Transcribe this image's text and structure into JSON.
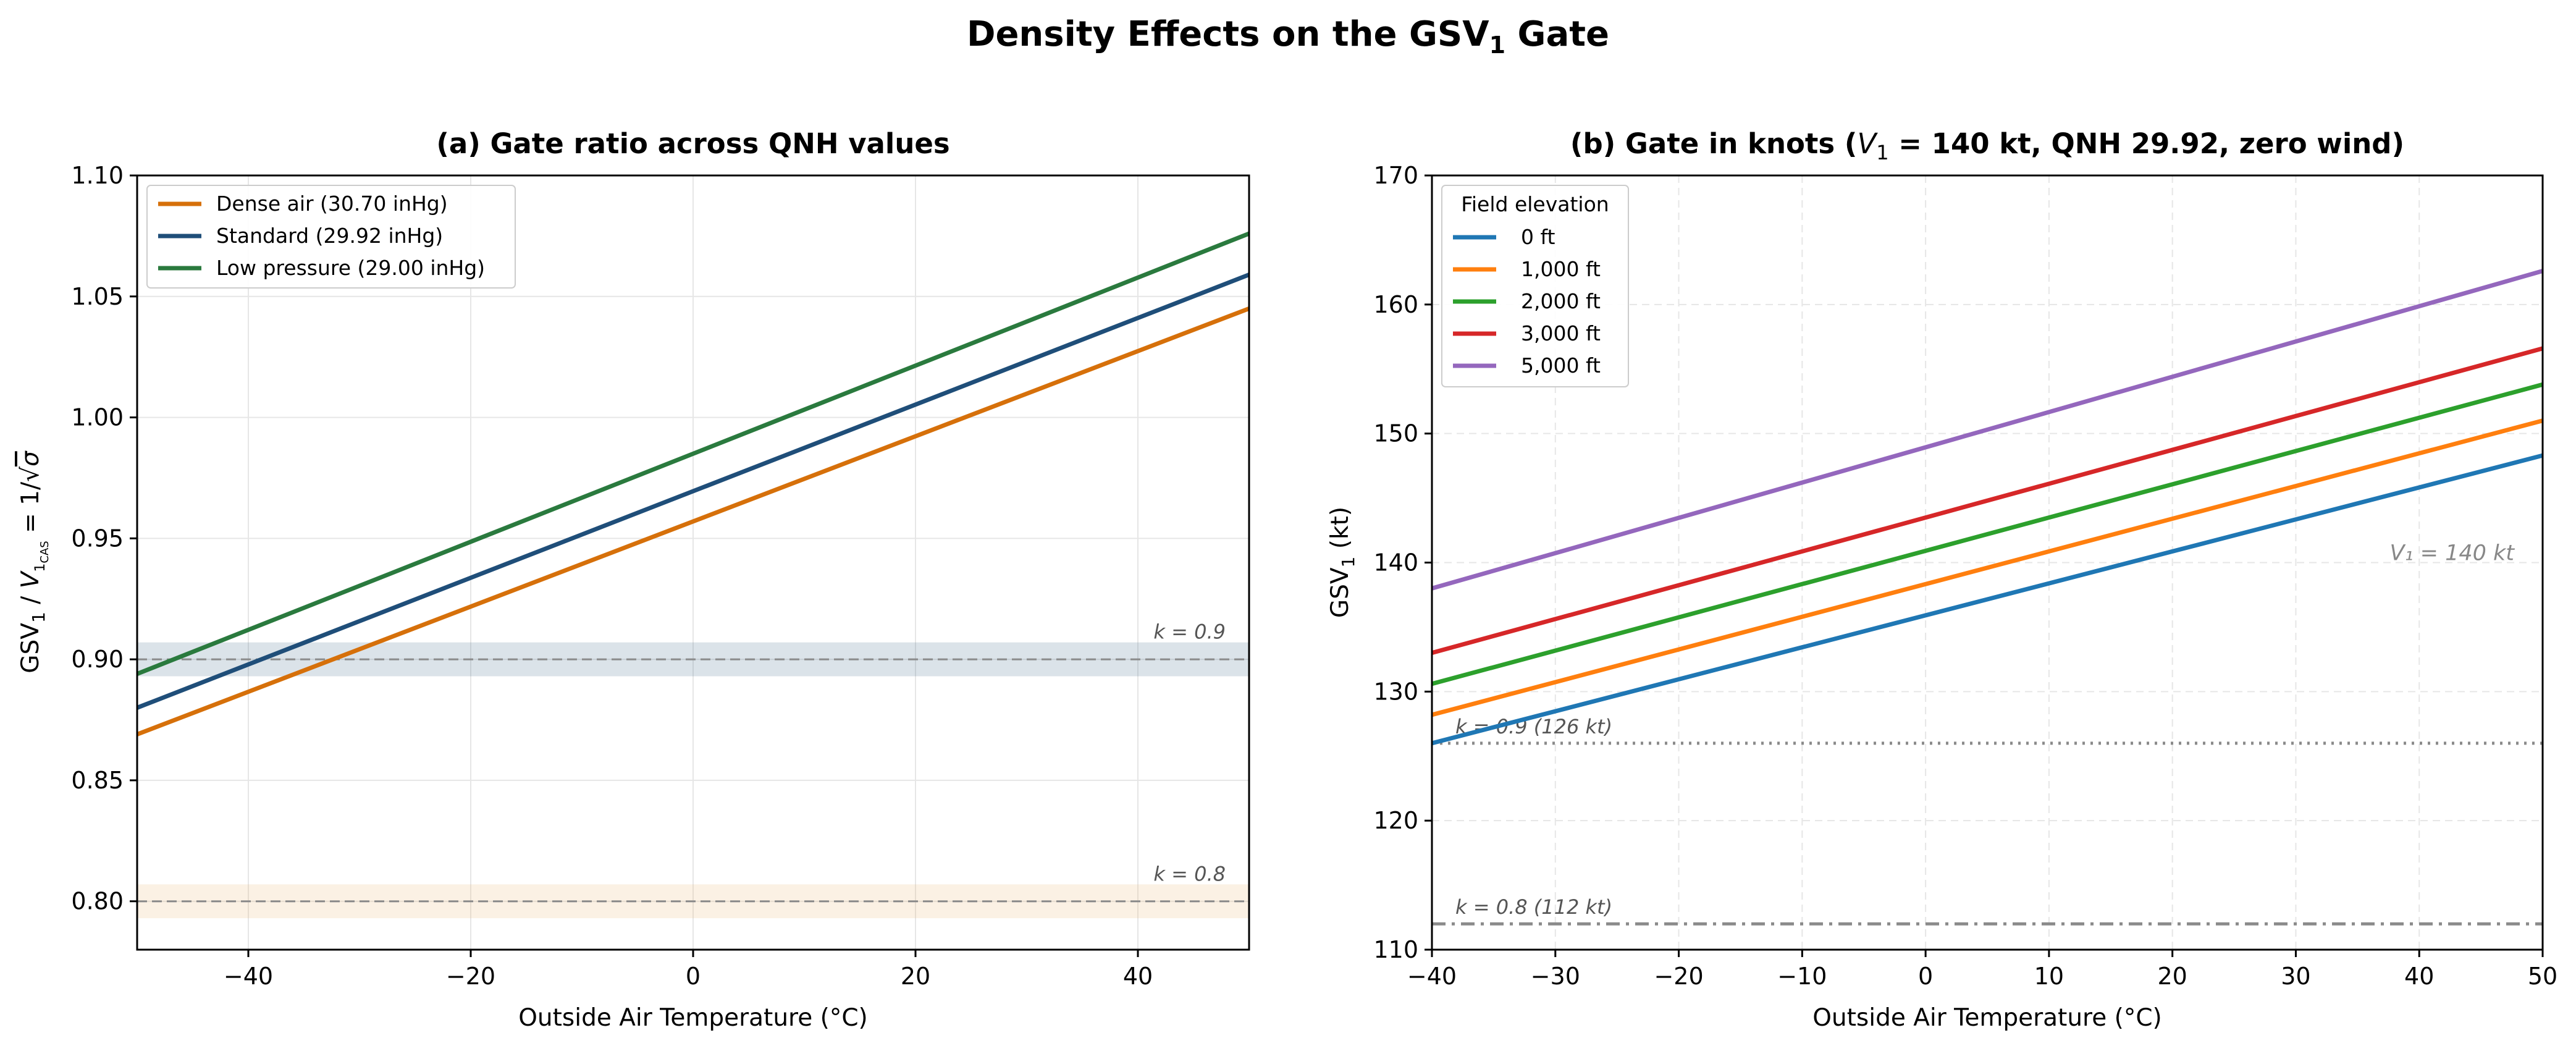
{
  "figure": {
    "title_main": "Density Effects on the GSV",
    "title_sub": "1",
    "title_end": " Gate"
  },
  "chart_data": [
    {
      "type": "line",
      "title": "(a)  Gate ratio across QNH values",
      "xlabel": "Outside Air Temperature (°C)",
      "ylabel": "GSV₁ / V₁CAS = 1/√σ",
      "xlim": [
        -50,
        50
      ],
      "ylim": [
        0.78,
        1.1
      ],
      "xticks": [
        -40,
        -20,
        0,
        20,
        40
      ],
      "xtick_labels": [
        "−40",
        "−20",
        "0",
        "20",
        "40"
      ],
      "yticks": [
        0.8,
        0.85,
        0.9,
        0.95,
        1.0,
        1.05,
        1.1
      ],
      "ytick_labels": [
        "0.80",
        "0.85",
        "0.90",
        "0.95",
        "1.00",
        "1.05",
        "1.10"
      ],
      "grid": true,
      "legend_position": "top-left",
      "series": [
        {
          "name": "Dense air (30.70 inHg)",
          "color": "#D6700A",
          "x": [
            -50,
            50
          ],
          "values": [
            0.869,
            1.045
          ]
        },
        {
          "name": "Standard (29.92 inHg)",
          "color": "#1F4E79",
          "x": [
            -50,
            50
          ],
          "values": [
            0.88,
            1.059
          ]
        },
        {
          "name": "Low pressure (29.00 inHg)",
          "color": "#2A7A3E",
          "x": [
            -50,
            50
          ],
          "values": [
            0.894,
            1.076
          ]
        }
      ],
      "reference_lines": [
        {
          "label": "k = 0.9",
          "y": 0.9,
          "band": [
            0.893,
            0.907
          ],
          "band_color": "#1F4E79"
        },
        {
          "label": "k = 0.8",
          "y": 0.8,
          "band": [
            0.793,
            0.807
          ],
          "band_color": "#E8A65A"
        }
      ]
    },
    {
      "type": "line",
      "title_prefix": "(b)  Gate in knots (",
      "title_v": "V",
      "title_sub": "1",
      "title_suffix": " = 140 kt, QNH 29.92, zero wind)",
      "xlabel": "Outside Air Temperature (°C)",
      "ylabel": "GSV₁ (kt)",
      "xlim": [
        -40,
        50
      ],
      "ylim": [
        110,
        170
      ],
      "xticks": [
        -40,
        -30,
        -20,
        -10,
        0,
        10,
        20,
        30,
        40,
        50
      ],
      "xtick_labels": [
        "−40",
        "−30",
        "−20",
        "−10",
        "0",
        "10",
        "20",
        "30",
        "40",
        "50"
      ],
      "yticks": [
        110,
        120,
        130,
        140,
        150,
        160,
        170
      ],
      "ytick_labels": [
        "110",
        "120",
        "130",
        "140",
        "150",
        "160",
        "170"
      ],
      "grid": true,
      "legend_title": "Field elevation",
      "legend_position": "top-left",
      "series": [
        {
          "name": "0 ft",
          "color": "#1F77B4",
          "x": [
            -40,
            50
          ],
          "values": [
            126.0,
            148.3
          ]
        },
        {
          "name": "1,000 ft",
          "color": "#FF7F0E",
          "x": [
            -40,
            50
          ],
          "values": [
            128.2,
            151.0
          ]
        },
        {
          "name": "2,000 ft",
          "color": "#2CA02C",
          "x": [
            -40,
            50
          ],
          "values": [
            130.6,
            153.8
          ]
        },
        {
          "name": "3,000 ft",
          "color": "#D62728",
          "x": [
            -40,
            50
          ],
          "values": [
            133.0,
            156.6
          ]
        },
        {
          "name": "5,000 ft",
          "color": "#9467BD",
          "x": [
            -40,
            50
          ],
          "values": [
            138.0,
            162.6
          ]
        }
      ],
      "reference_lines": [
        {
          "label": "V₁ = 140 kt",
          "y": 140,
          "style": "none"
        },
        {
          "label": "k = 0.9  (126 kt)",
          "y": 126,
          "style": "dotted"
        },
        {
          "label": "k = 0.8  (112 kt)",
          "y": 112,
          "style": "dashdot"
        }
      ]
    }
  ]
}
